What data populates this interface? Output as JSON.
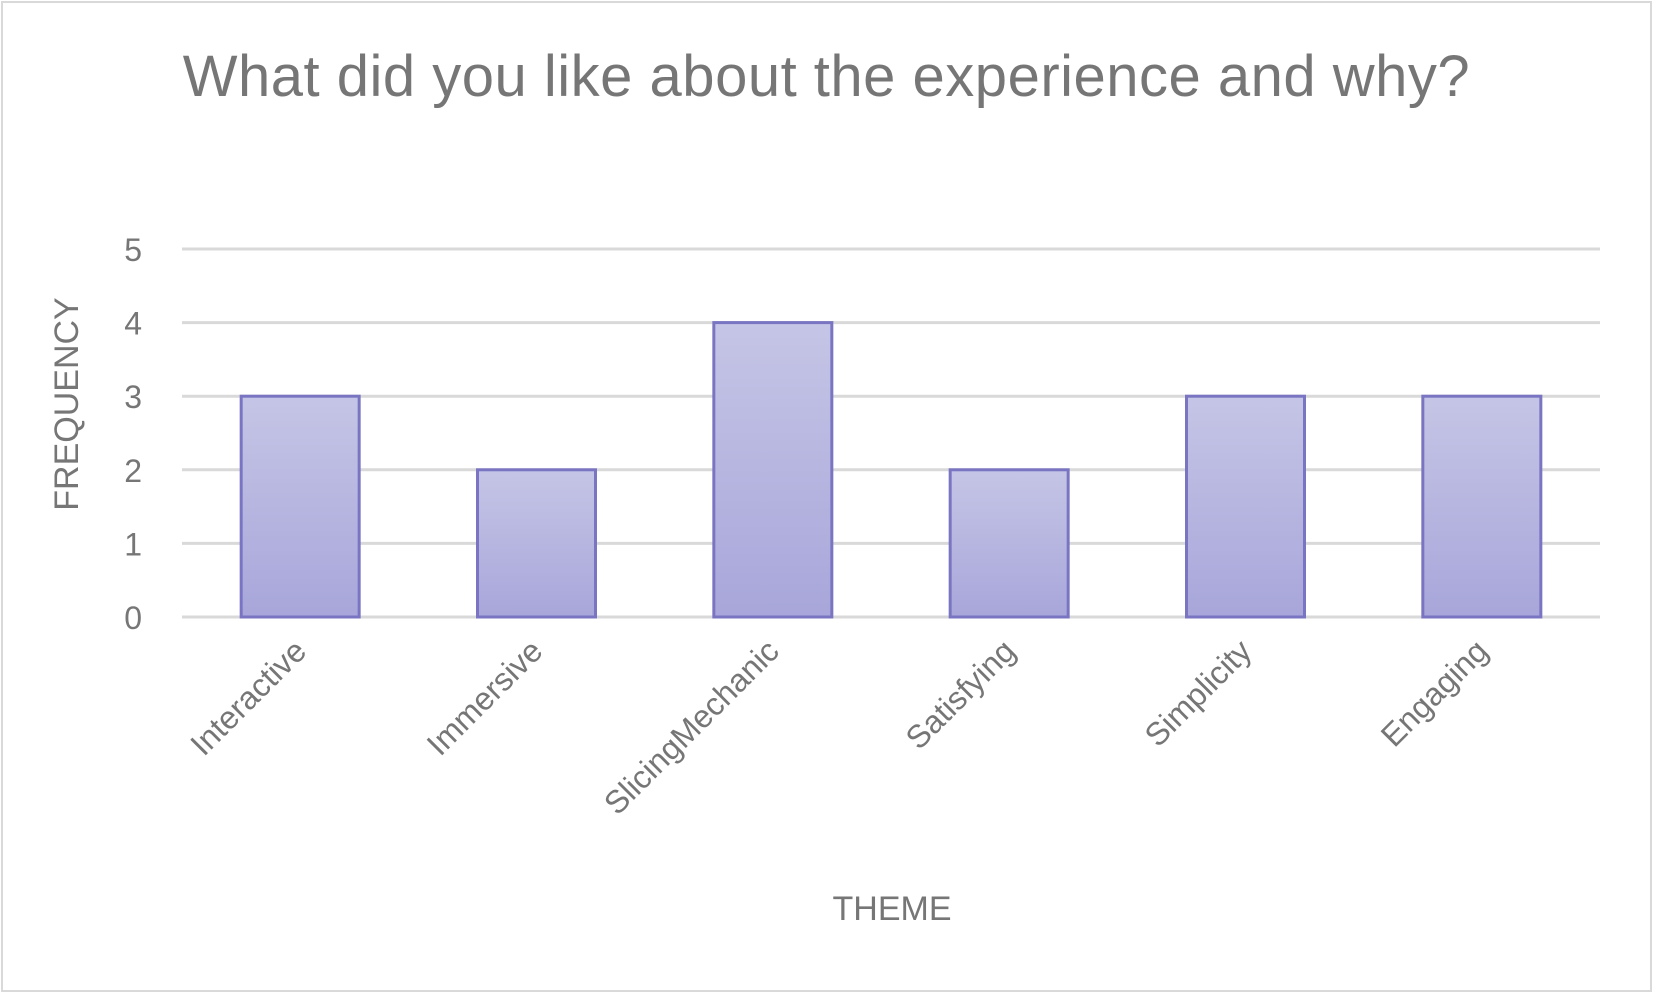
{
  "chart_data": {
    "type": "bar",
    "title": "What did you like about the experience and why?",
    "xlabel": "THEME",
    "ylabel": "FREQUENCY",
    "categories": [
      "Interactive",
      "Immersive",
      "SlicingMechanic",
      "Satisfying",
      "Simplicity",
      "Engaging"
    ],
    "values": [
      3,
      2,
      4,
      2,
      3,
      3
    ],
    "ylim": [
      0,
      5
    ],
    "yticks": [
      "0",
      "1",
      "2",
      "3",
      "4",
      "5"
    ],
    "grid": true,
    "legend": "none",
    "colors": {
      "bar_fill_top": "#c5c5e6",
      "bar_fill_bottom": "#a8a6da",
      "bar_stroke": "#7a75c2",
      "grid": "#d9d9d9",
      "text": "#767676"
    }
  }
}
